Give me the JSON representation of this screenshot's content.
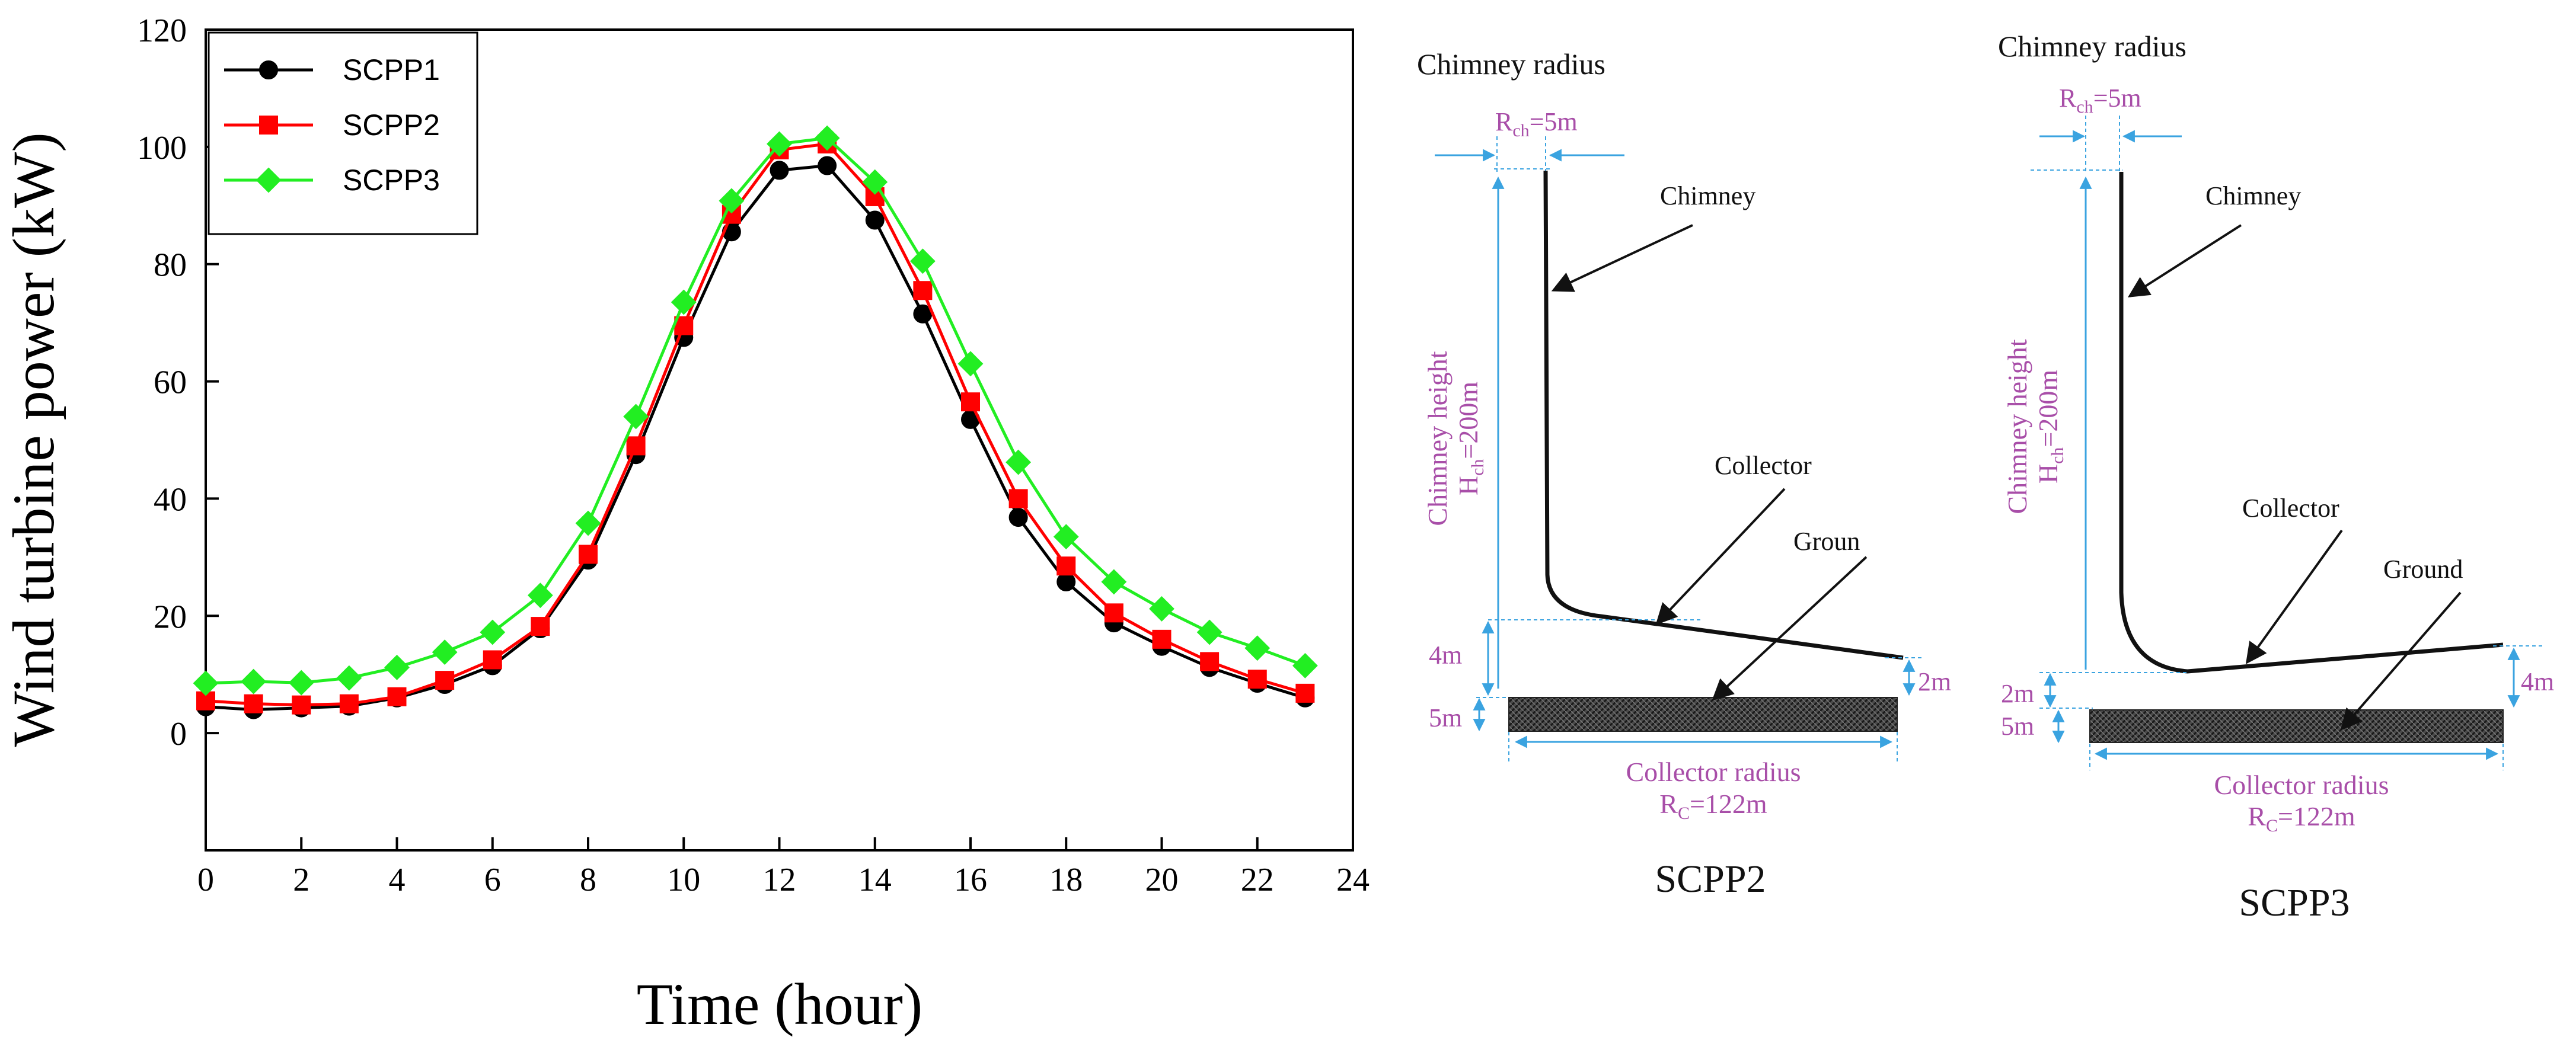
{
  "chart_data": {
    "type": "line",
    "title": "",
    "xlabel": "Time (hour)",
    "ylabel": "Wind turbine power (kW)",
    "xlim": [
      0,
      24
    ],
    "ylim": [
      -20,
      120
    ],
    "xticks": [
      0,
      2,
      4,
      6,
      8,
      10,
      12,
      14,
      16,
      18,
      20,
      22,
      24
    ],
    "yticks": [
      0,
      20,
      40,
      60,
      80,
      100,
      120
    ],
    "grid": false,
    "legend": "top-left",
    "x": [
      0,
      1,
      2,
      3,
      4,
      5,
      6,
      7,
      8,
      9,
      10,
      11,
      12,
      13,
      14,
      15,
      16,
      17,
      18,
      19,
      20,
      21,
      22,
      23
    ],
    "series": [
      {
        "name": "SCPP1",
        "color": "#000000",
        "marker": "circle",
        "values": [
          4.5,
          4,
          4.3,
          4.6,
          6,
          8.3,
          11.5,
          17.8,
          29.5,
          47.5,
          67.5,
          85.5,
          96,
          96.8,
          87.5,
          71.5,
          53.5,
          36.8,
          25.8,
          18.8,
          14.8,
          11.2,
          8.5,
          6
        ]
      },
      {
        "name": "SCPP2",
        "color": "#ff0000",
        "marker": "square",
        "values": [
          5.5,
          5,
          4.8,
          5,
          6.2,
          9,
          12.5,
          18.2,
          30.5,
          49,
          69.5,
          88.5,
          99.5,
          100.5,
          91.5,
          75.5,
          56.5,
          40,
          28.5,
          20.5,
          16,
          12.2,
          9.2,
          6.8
        ]
      },
      {
        "name": "SCPP3",
        "color": "#22ee22",
        "marker": "diamond",
        "values": [
          8.5,
          8.8,
          8.6,
          9.4,
          11.2,
          13.8,
          17.2,
          23.5,
          35.8,
          54,
          73.5,
          90.8,
          100.5,
          101.5,
          94,
          80.5,
          63,
          46.2,
          33.5,
          25.8,
          21.2,
          17.2,
          14.5,
          11.5
        ]
      }
    ]
  },
  "diagrams": [
    {
      "id": "scpp2",
      "caption": "SCPP2",
      "chimney_radius_title": "Chimney radius",
      "rch_main": "R",
      "rch_sub": "ch",
      "rch_rest": "=5m",
      "chimney_label": "Chimney",
      "height_line1": "Chimney height",
      "height_main": "H",
      "height_sub": "ch",
      "height_rest": "=200m",
      "collector_label": "Collector",
      "ground_label": "Groun",
      "dim_left_upper": "4m",
      "dim_left_lower": "5m",
      "dim_right": "2m",
      "collector_radius_line1": "Collector radius",
      "rc_main": "R",
      "rc_sub": "C",
      "rc_rest": "=122m",
      "label_color": "#a84ea8",
      "dim_color": "#3aa3e0"
    },
    {
      "id": "scpp3",
      "caption": "SCPP3",
      "chimney_radius_title": "Chimney radius",
      "rch_main": "R",
      "rch_sub": "ch",
      "rch_rest": "=5m",
      "chimney_label": "Chimney",
      "height_line1": "Chimney height",
      "height_main": "H",
      "height_sub": "ch",
      "height_rest": "=200m",
      "collector_label": "Collector",
      "ground_label": "Ground",
      "dim_left_upper": "2m",
      "dim_left_lower": "5m",
      "dim_right": "4m",
      "collector_radius_line1": "Collector radius",
      "rc_main": "R",
      "rc_sub": "C",
      "rc_rest": "=122m",
      "label_color": "#a84ea8",
      "dim_color": "#3aa3e0"
    }
  ]
}
